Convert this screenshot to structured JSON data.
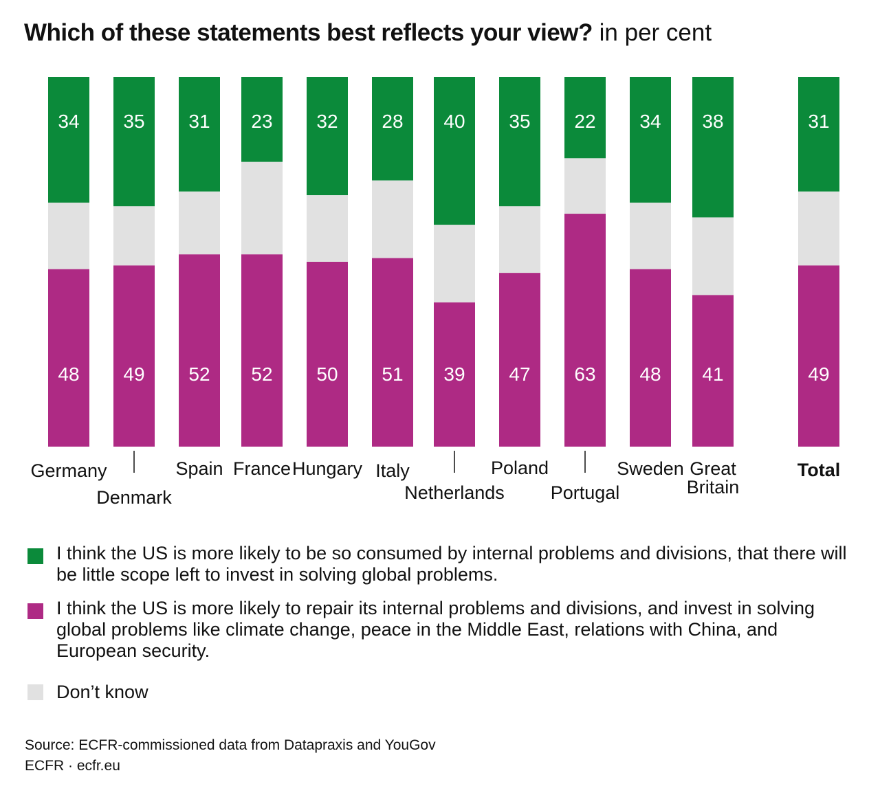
{
  "title": {
    "main": "Which of these statements best reflects your view?",
    "unit": "in per cent"
  },
  "legend": [
    {
      "key": "consumed",
      "color": "#0b8a3a",
      "text": "I think the US is more likely to be so consumed by internal problems and divisions, that there will be little scope left to invest in solving global problems."
    },
    {
      "key": "repair",
      "color": "#ae2a84",
      "text": "I think the US is more likely to repair its internal problems and divisions, and invest in solving global problems like climate change, peace in the Middle East, relations with China, and European security."
    },
    {
      "key": "dontknow",
      "color": "#e1e1e1",
      "text": "Don’t know"
    }
  ],
  "source": "Source: ECFR-commissioned data from Datapraxis and YouGov",
  "credit": "ECFR · ecfr.eu",
  "chart_data": {
    "type": "bar",
    "stacked": true,
    "orientation": "vertical",
    "categories": [
      "Germany",
      "Denmark",
      "Spain",
      "France",
      "Hungary",
      "Italy",
      "Netherlands",
      "Poland",
      "Portugal",
      "Sweden",
      "Great Britain",
      "Total"
    ],
    "series": [
      {
        "name": "I think the US is more likely to be so consumed by internal problems and divisions, that there will be little scope left to invest in solving global problems.",
        "color": "#0b8a3a",
        "position": "top",
        "values": [
          34,
          35,
          31,
          23,
          32,
          28,
          40,
          35,
          22,
          34,
          38,
          31
        ]
      },
      {
        "name": "Don’t know",
        "color": "#e1e1e1",
        "position": "middle",
        "values": [
          18,
          16,
          17,
          25,
          18,
          21,
          21,
          18,
          15,
          18,
          21,
          20
        ]
      },
      {
        "name": "I think the US is more likely to repair its internal problems and divisions, and invest in solving global problems like climate change, peace in the Middle East, relations with China, and European security.",
        "color": "#ae2a84",
        "position": "bottom",
        "values": [
          48,
          49,
          52,
          52,
          50,
          51,
          39,
          47,
          63,
          48,
          41,
          49
        ]
      }
    ],
    "data_labels": [
      "top",
      "bottom"
    ],
    "ylim": [
      0,
      100
    ],
    "grid": false,
    "legend": "bottom"
  }
}
